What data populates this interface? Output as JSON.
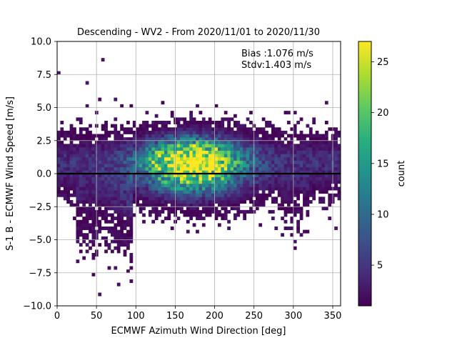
{
  "chart_data": {
    "type": "heatmap",
    "title": "Descending - WV2 - From 2020/11/01 to 2020/11/30",
    "xlabel": "ECMWF Azimuth Wind Direction [deg]",
    "ylabel": "S-1 B - ECMWF Wind Speed [m/s]",
    "xlim": [
      0,
      360
    ],
    "ylim": [
      -10,
      10
    ],
    "x_ticks": [
      "0",
      "50",
      "100",
      "150",
      "200",
      "250",
      "300",
      "350"
    ],
    "y_ticks": [
      "−10.0",
      "−7.5",
      "−5.0",
      "−2.5",
      "0.0",
      "2.5",
      "5.0",
      "7.5",
      "10.0"
    ],
    "grid": true,
    "colormap": "viridis",
    "colorbar": {
      "label": "count",
      "range": [
        1,
        27
      ],
      "ticks": [
        "5",
        "10",
        "15",
        "20",
        "25"
      ]
    },
    "reference_line": {
      "y": 0,
      "color": "#000000"
    },
    "annotations": [
      "Bias :1.076 m/s",
      "Stdv:1.403 m/s"
    ],
    "density_peaks": [
      {
        "x": 160,
        "y": 0.8,
        "count": 24
      },
      {
        "x": 185,
        "y": 0.7,
        "count": 26
      }
    ]
  }
}
